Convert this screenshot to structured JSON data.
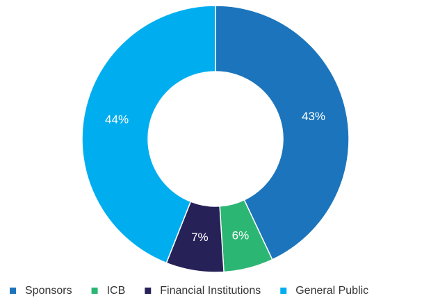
{
  "chart_data": {
    "type": "donut",
    "categories": [
      "Sponsors",
      "ICB",
      "Financial Institutions",
      "General Public"
    ],
    "values": [
      43,
      6,
      7,
      44
    ],
    "value_labels": [
      "43%",
      "6%",
      "7%",
      "44%"
    ],
    "colors": [
      "#1c75bc",
      "#2cb673",
      "#262157",
      "#00aeef"
    ],
    "legend": "bottom"
  }
}
